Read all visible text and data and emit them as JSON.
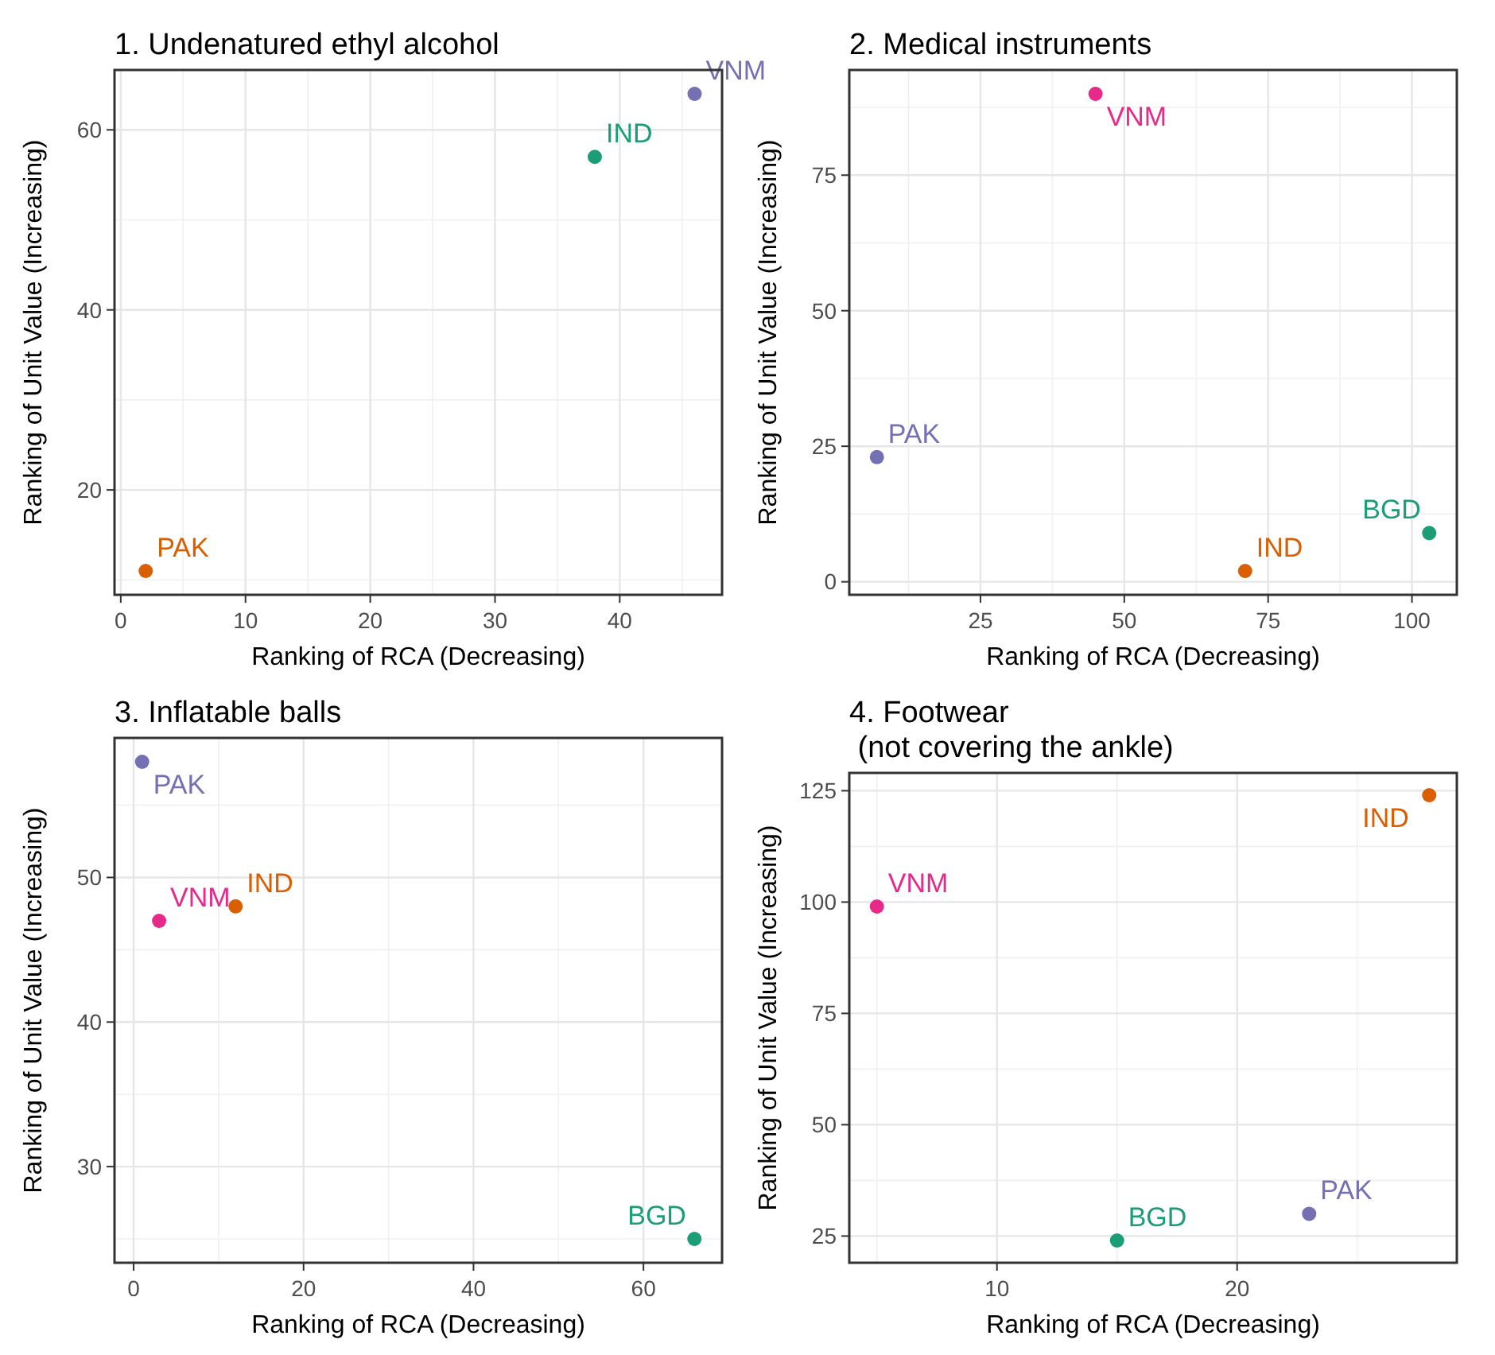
{
  "chart_data": [
    {
      "type": "scatter",
      "title": "1. Undenatured ethyl alcohol",
      "xlabel": "Ranking of RCA (Decreasing)",
      "ylabel": "Ranking of Unit Value (Increasing)",
      "xlim": [
        -0.5,
        48.2
      ],
      "ylim": [
        8.35,
        66.65
      ],
      "xticks": [
        0,
        10,
        20,
        30,
        40
      ],
      "yticks": [
        20,
        40,
        60
      ],
      "grid": true,
      "marker": "circle",
      "series": [
        {
          "name": "IND",
          "color": "#1b9e77",
          "x": [
            38
          ],
          "values": [
            57
          ]
        },
        {
          "name": "PAK",
          "color": "#d95f02",
          "x": [
            2
          ],
          "values": [
            11
          ]
        },
        {
          "name": "VNM",
          "color": "#7570b3",
          "x": [
            46
          ],
          "values": [
            64
          ]
        }
      ]
    },
    {
      "type": "scatter",
      "title": "2. Medical instruments",
      "xlabel": "Ranking of RCA (Decreasing)",
      "ylabel": "Ranking of Unit Value (Increasing)",
      "xlim": [
        2.2,
        107.8
      ],
      "ylim": [
        -2.4,
        94.4
      ],
      "xticks": [
        25,
        50,
        75,
        100
      ],
      "yticks": [
        0,
        25,
        50,
        75
      ],
      "grid": true,
      "marker": "circle",
      "series": [
        {
          "name": "BGD",
          "color": "#1b9e77",
          "x": [
            103
          ],
          "values": [
            9
          ]
        },
        {
          "name": "IND",
          "color": "#d95f02",
          "x": [
            71
          ],
          "values": [
            2
          ]
        },
        {
          "name": "PAK",
          "color": "#7570b3",
          "x": [
            7
          ],
          "values": [
            23
          ]
        },
        {
          "name": "VNM",
          "color": "#e7298a",
          "x": [
            45
          ],
          "values": [
            90
          ]
        }
      ]
    },
    {
      "type": "scatter",
      "title": "3. Inflatable balls",
      "xlabel": "Ranking of RCA (Decreasing)",
      "ylabel": "Ranking of Unit Value (Increasing)",
      "xlim": [
        -2.25,
        69.25
      ],
      "ylim": [
        23.35,
        59.65
      ],
      "xticks": [
        0,
        20,
        40,
        60
      ],
      "yticks": [
        30,
        40,
        50
      ],
      "grid": true,
      "marker": "circle",
      "series": [
        {
          "name": "BGD",
          "color": "#1b9e77",
          "x": [
            66
          ],
          "values": [
            25
          ]
        },
        {
          "name": "IND",
          "color": "#d95f02",
          "x": [
            12
          ],
          "values": [
            48
          ]
        },
        {
          "name": "PAK",
          "color": "#7570b3",
          "x": [
            1
          ],
          "values": [
            58
          ]
        },
        {
          "name": "VNM",
          "color": "#e7298a",
          "x": [
            3
          ],
          "values": [
            47
          ]
        }
      ]
    },
    {
      "type": "scatter",
      "title": "4. Footwear\n (not covering the ankle)",
      "xlabel": "Ranking of RCA (Decreasing)",
      "ylabel": "Ranking of Unit Value (Increasing)",
      "xlim": [
        3.85,
        29.15
      ],
      "ylim": [
        19,
        129
      ],
      "xticks": [
        10,
        20
      ],
      "yticks": [
        25,
        50,
        75,
        100,
        125
      ],
      "grid": true,
      "marker": "circle",
      "series": [
        {
          "name": "BGD",
          "color": "#1b9e77",
          "x": [
            15
          ],
          "values": [
            24
          ]
        },
        {
          "name": "IND",
          "color": "#d95f02",
          "x": [
            28
          ],
          "values": [
            124
          ]
        },
        {
          "name": "PAK",
          "color": "#7570b3",
          "x": [
            23
          ],
          "values": [
            30
          ]
        },
        {
          "name": "VNM",
          "color": "#e7298a",
          "x": [
            5
          ],
          "values": [
            99
          ]
        }
      ]
    }
  ]
}
